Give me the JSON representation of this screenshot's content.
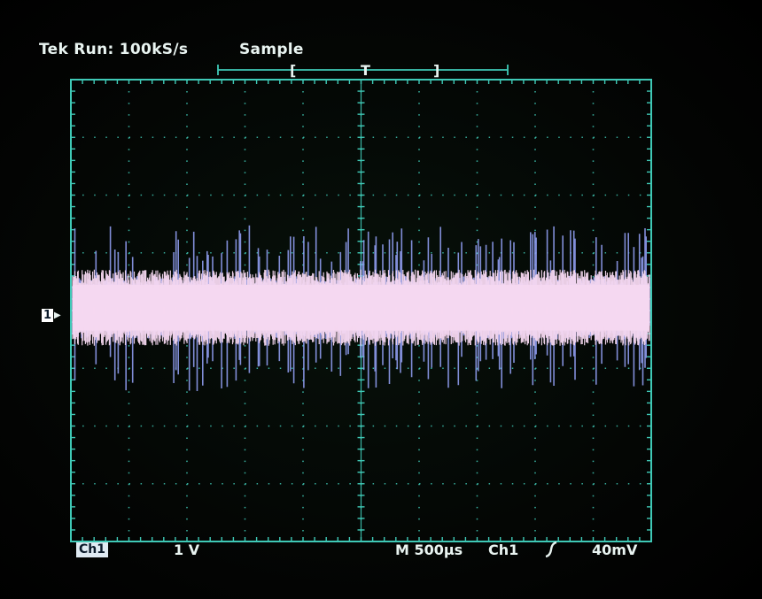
{
  "status": {
    "run_state": "Tek Run: 100kS/s",
    "acq_mode": "Sample"
  },
  "trigger_position": {
    "marker_label": "T",
    "bracket_open": "[",
    "bracket_close": "]"
  },
  "channel_marker": {
    "channel": "1",
    "icon": "arrow-right-icon"
  },
  "readout": {
    "channel_label": "Ch1",
    "volts_per_div": "1 V",
    "timebase": "M 500µs",
    "trigger_source": "Ch1",
    "trigger_slope_icon": "rising-edge-icon",
    "trigger_level": "40mV"
  },
  "colors": {
    "graticule": "#3fc9b6",
    "trace": "#f6d8f0",
    "trace_edge": "#8f9cf0",
    "text": "#e9f4f1"
  },
  "chart_data": {
    "type": "line",
    "title": "",
    "xlabel": "",
    "ylabel": "",
    "divisions": {
      "x": 10,
      "y": 8
    },
    "xlim": [
      0,
      5000
    ],
    "x_unit": "µs",
    "ylim": [
      -4,
      4
    ],
    "y_unit": "V",
    "series": [
      {
        "name": "",
        "kind": "noise",
        "center": 0.05,
        "core_halfwidth": 0.55,
        "spike_halfwidth": 1.45,
        "color": "#f6d8f0"
      }
    ]
  }
}
